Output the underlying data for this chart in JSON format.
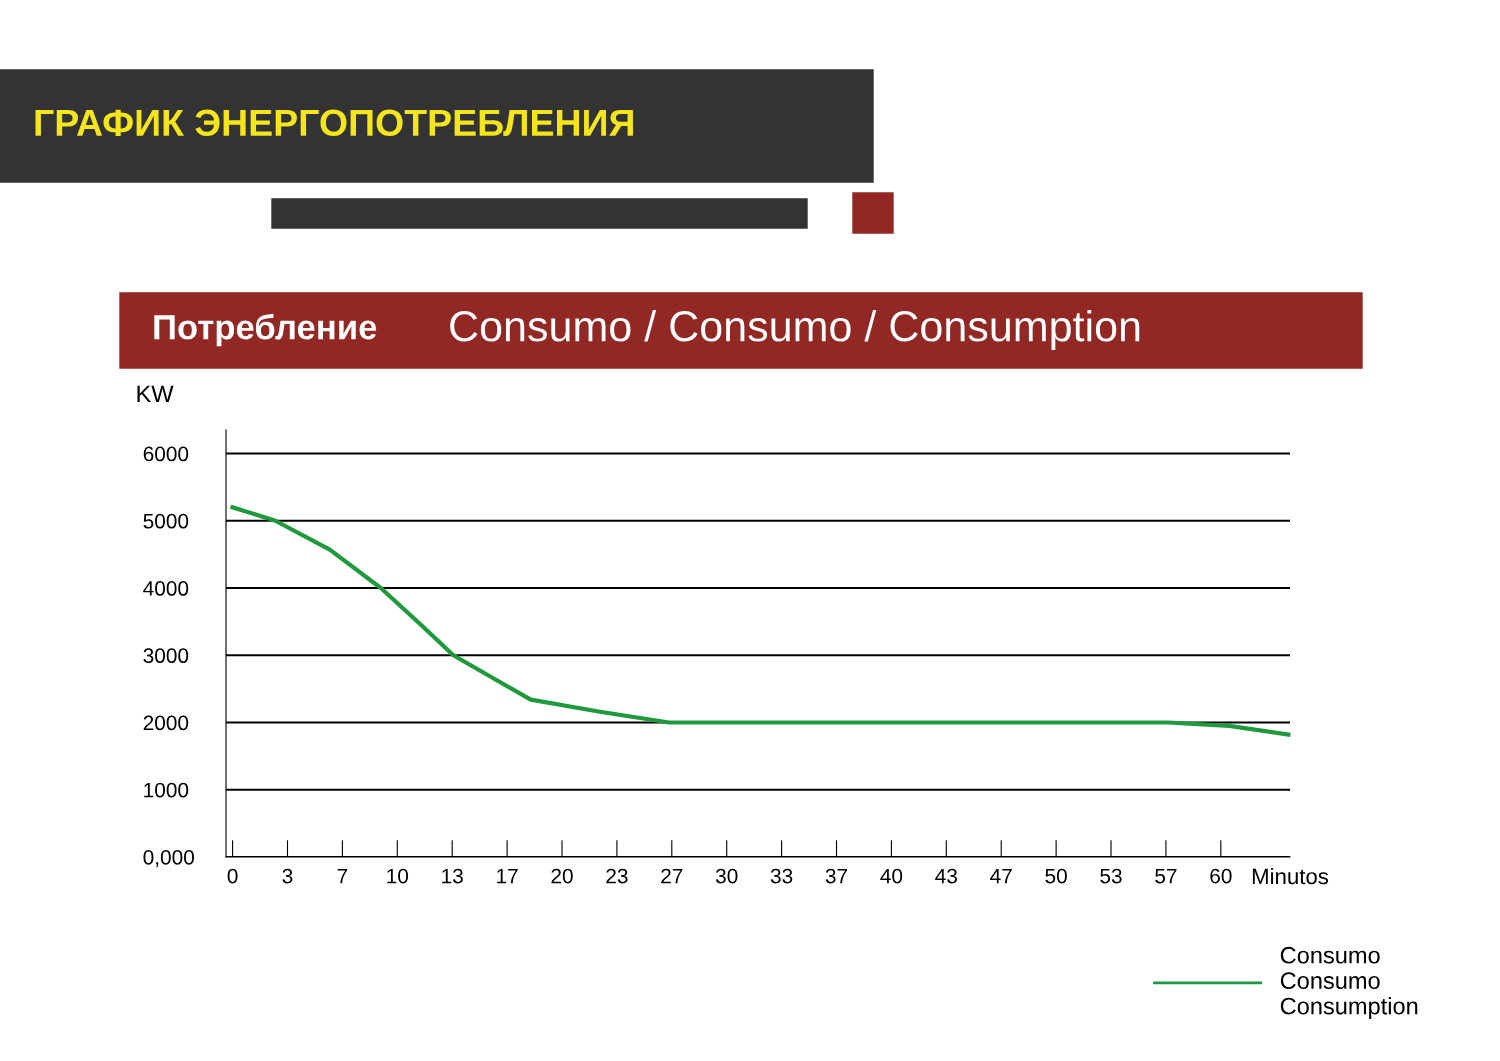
{
  "chart_data": {
    "type": "line",
    "title": "ГРАФИК ЭНЕРГОПОТРЕБЛЕНИЯ",
    "subtitle": "Потребление",
    "annotations": [
      "Consumo / Consumo / Consumption"
    ],
    "xlabel": "Minutos",
    "ylabel": "KW",
    "x": [
      0,
      2.6,
      5.9,
      9.0,
      11.4,
      13.4,
      18.1,
      22.3,
      26.5,
      30,
      40,
      50,
      56.8,
      60.5,
      64.1
    ],
    "series": [
      {
        "name": "Consumo\nConsumo\nConsumption",
        "color": "#1e9a3c",
        "values": [
          5200,
          5000,
          4570,
          4000,
          3460,
          3000,
          2340,
          2160,
          2000,
          2000,
          2000,
          2000,
          2000,
          1950,
          1820
        ]
      }
    ],
    "xlim": [
      -0.4,
      64.2
    ],
    "ylim": [
      0,
      6350
    ],
    "xticks": [
      0,
      {
        "value": 3.333,
        "label": "3"
      },
      {
        "value": 6.667,
        "label": "7"
      },
      10,
      {
        "value": 13.333,
        "label": "13"
      },
      {
        "value": 16.667,
        "label": "17"
      },
      20,
      {
        "value": 23.333,
        "label": "23"
      },
      {
        "value": 26.667,
        "label": "27"
      },
      30,
      {
        "value": 33.333,
        "label": "33"
      },
      {
        "value": 36.667,
        "label": "37"
      },
      40,
      {
        "value": 43.333,
        "label": "43"
      },
      {
        "value": 46.667,
        "label": "47"
      },
      50,
      {
        "value": 53.333,
        "label": "53"
      },
      {
        "value": 56.667,
        "label": "57"
      },
      60
    ],
    "yticks": [
      {
        "value": 0,
        "label": "0,000"
      },
      1000,
      2000,
      3000,
      4000,
      5000,
      6000
    ],
    "grid": "y",
    "legend": "bottom right",
    "line_style": "solid",
    "marker": "none"
  }
}
